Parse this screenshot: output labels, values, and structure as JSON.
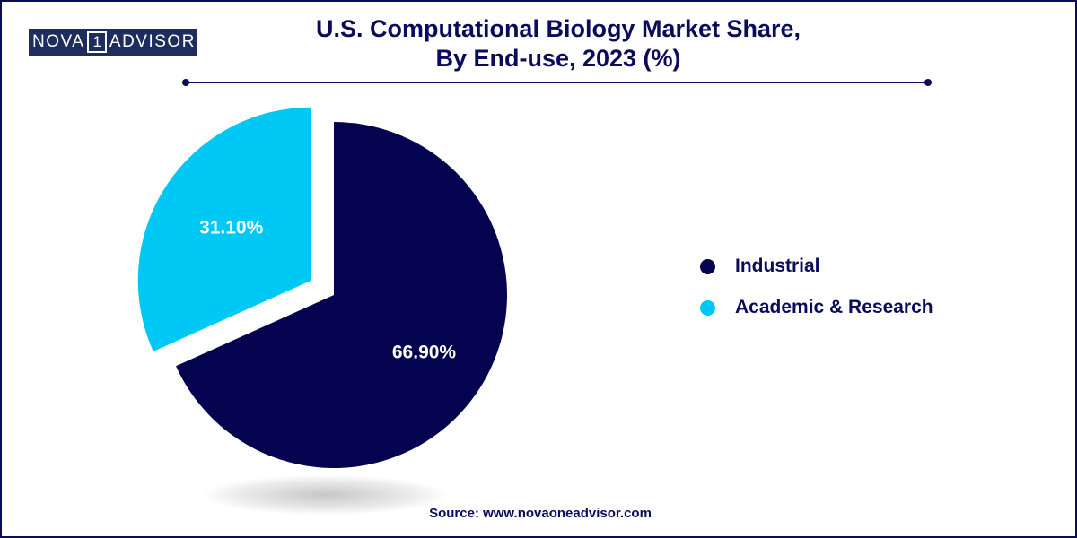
{
  "logo": {
    "left_text": "NOVA",
    "digit": "1",
    "right_text": "ADVISOR"
  },
  "title_line1": "U.S. Computational Biology Market Share,",
  "title_line2": "By End-use, 2023 (%)",
  "source": "Source: www.novaoneadvisor.com",
  "colors": {
    "industrial": "#03034f",
    "academic": "#00c8f5",
    "text": "#0b0b5c"
  },
  "chart_data": {
    "type": "pie",
    "title": "U.S. Computational Biology Market Share, By End-use, 2023 (%)",
    "legend_position": "right",
    "slices": [
      {
        "name": "Industrial",
        "value": 66.9,
        "label": "66.90%",
        "color": "#03034f",
        "exploded": false
      },
      {
        "name": "Academic & Research",
        "value": 31.1,
        "label": "31.10%",
        "color": "#00c8f5",
        "exploded": true
      }
    ]
  }
}
